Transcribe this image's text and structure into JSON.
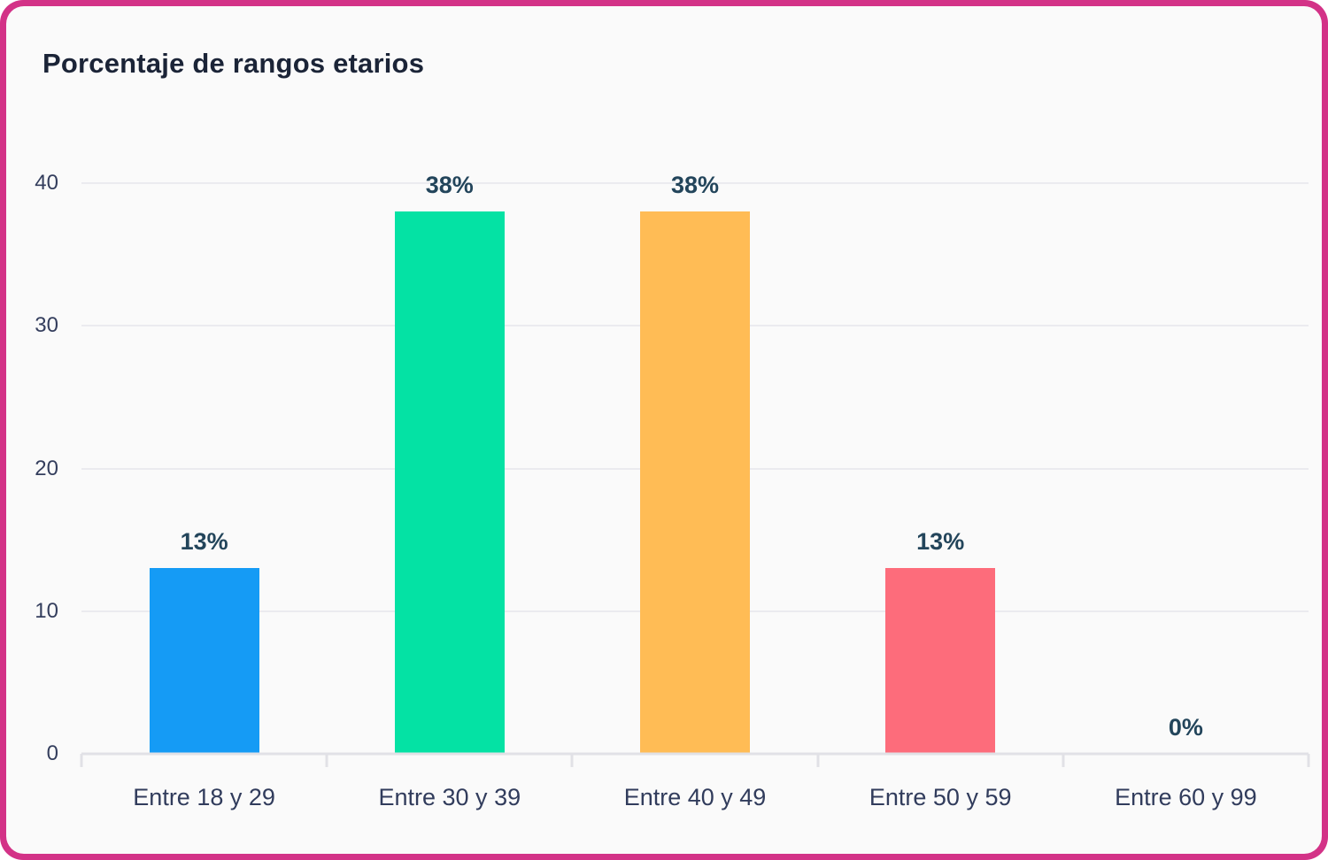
{
  "card": {
    "title": "Porcentaje de rangos etarios"
  },
  "theme": {
    "border_pink": "#D33287",
    "card_background": "#FAFAFA",
    "title_color": "#1B2437",
    "axis_label_color": "#343E5D",
    "category_label_color": "#313C5C",
    "value_label_color": "#23455B",
    "grid_color": "#EBEBEF",
    "axis_line_color": "#E1E1E6"
  },
  "chart_data": {
    "type": "bar",
    "title": "Porcentaje de rangos etarios",
    "categories": [
      "Entre 18 y 29",
      "Entre 30 y 39",
      "Entre 40 y 49",
      "Entre 50 y 59",
      "Entre 60 y 99"
    ],
    "values": [
      13,
      38,
      38,
      13,
      0
    ],
    "value_labels": [
      "13%",
      "38%",
      "38%",
      "13%",
      "0%"
    ],
    "bar_colors": [
      "#159BF5",
      "#04E2A4",
      "#FFBC55",
      "#FD6C7B",
      null
    ],
    "xlabel": "",
    "ylabel": "",
    "ylim": [
      0,
      40
    ],
    "yticks": [
      0,
      10,
      20,
      30,
      40
    ],
    "grid": true,
    "legend": false,
    "value_unit": "%"
  }
}
